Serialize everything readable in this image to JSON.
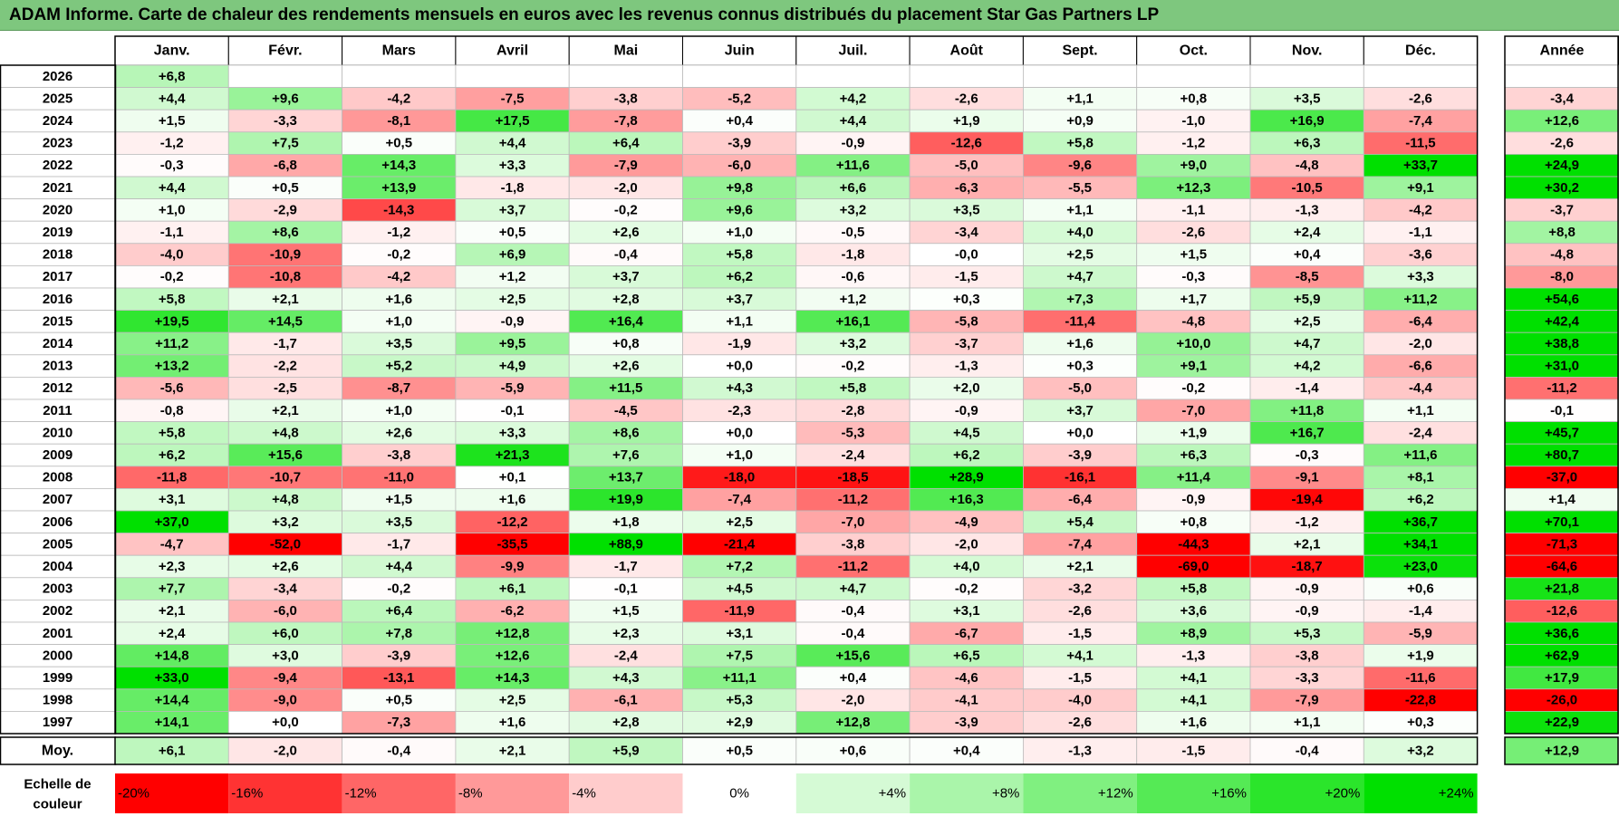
{
  "title": "ADAM Informe. Carte de chaleur des rendements mensuels en euros avec les revenus connus distribués du placement Star Gas Partners LP",
  "chart_data": {
    "type": "heatmap",
    "title": "ADAM Informe. Carte de chaleur des rendements mensuels en euros avec les revenus connus distribués du placement Star Gas Partners LP",
    "months": [
      "Janv.",
      "Févr.",
      "Mars",
      "Avril",
      "Mai",
      "Juin",
      "Juil.",
      "Août",
      "Sept.",
      "Oct.",
      "Nov.",
      "Déc."
    ],
    "annual_label": "Année",
    "rows": [
      {
        "year": "2026",
        "values": [
          "+6,8",
          "",
          "",
          "",
          "",
          "",
          "",
          "",
          "",
          "",
          "",
          ""
        ],
        "annual": ""
      },
      {
        "year": "2025",
        "values": [
          "+4,4",
          "+9,6",
          "-4,2",
          "-7,5",
          "-3,8",
          "-5,2",
          "+4,2",
          "-2,6",
          "+1,1",
          "+0,8",
          "+3,5",
          "-2,6"
        ],
        "annual": "-3,4"
      },
      {
        "year": "2024",
        "values": [
          "+1,5",
          "-3,3",
          "-8,1",
          "+17,5",
          "-7,8",
          "+0,4",
          "+4,4",
          "+1,9",
          "+0,9",
          "-1,0",
          "+16,9",
          "-7,4"
        ],
        "annual": "+12,6"
      },
      {
        "year": "2023",
        "values": [
          "-1,2",
          "+7,5",
          "+0,5",
          "+4,4",
          "+6,4",
          "-3,9",
          "-0,9",
          "-12,6",
          "+5,8",
          "-1,2",
          "+6,3",
          "-11,5"
        ],
        "annual": "-2,6"
      },
      {
        "year": "2022",
        "values": [
          "-0,3",
          "-6,8",
          "+14,3",
          "+3,3",
          "-7,9",
          "-6,0",
          "+11,6",
          "-5,0",
          "-9,6",
          "+9,0",
          "-4,8",
          "+33,7"
        ],
        "annual": "+24,9"
      },
      {
        "year": "2021",
        "values": [
          "+4,4",
          "+0,5",
          "+13,9",
          "-1,8",
          "-2,0",
          "+9,8",
          "+6,6",
          "-6,3",
          "-5,5",
          "+12,3",
          "-10,5",
          "+9,1"
        ],
        "annual": "+30,2"
      },
      {
        "year": "2020",
        "values": [
          "+1,0",
          "-2,9",
          "-14,3",
          "+3,7",
          "-0,2",
          "+9,6",
          "+3,2",
          "+3,5",
          "+1,1",
          "-1,1",
          "-1,3",
          "-4,2"
        ],
        "annual": "-3,7"
      },
      {
        "year": "2019",
        "values": [
          "-1,1",
          "+8,6",
          "-1,2",
          "+0,5",
          "+2,6",
          "+1,0",
          "-0,5",
          "-3,4",
          "+4,0",
          "-2,6",
          "+2,4",
          "-1,1"
        ],
        "annual": "+8,8"
      },
      {
        "year": "2018",
        "values": [
          "-4,0",
          "-10,9",
          "-0,2",
          "+6,9",
          "-0,4",
          "+5,8",
          "-1,8",
          "-0,0",
          "+2,5",
          "+1,5",
          "+0,4",
          "-3,6"
        ],
        "annual": "-4,8"
      },
      {
        "year": "2017",
        "values": [
          "-0,2",
          "-10,8",
          "-4,2",
          "+1,2",
          "+3,7",
          "+6,2",
          "-0,6",
          "-1,5",
          "+4,7",
          "-0,3",
          "-8,5",
          "+3,3"
        ],
        "annual": "-8,0"
      },
      {
        "year": "2016",
        "values": [
          "+5,8",
          "+2,1",
          "+1,6",
          "+2,5",
          "+2,8",
          "+3,7",
          "+1,2",
          "+0,3",
          "+7,3",
          "+1,7",
          "+5,9",
          "+11,2"
        ],
        "annual": "+54,6"
      },
      {
        "year": "2015",
        "values": [
          "+19,5",
          "+14,5",
          "+1,0",
          "-0,9",
          "+16,4",
          "+1,1",
          "+16,1",
          "-5,8",
          "-11,4",
          "-4,8",
          "+2,5",
          "-6,4"
        ],
        "annual": "+42,4"
      },
      {
        "year": "2014",
        "values": [
          "+11,2",
          "-1,7",
          "+3,5",
          "+9,5",
          "+0,8",
          "-1,9",
          "+3,2",
          "-3,7",
          "+1,6",
          "+10,0",
          "+4,7",
          "-2,0"
        ],
        "annual": "+38,8"
      },
      {
        "year": "2013",
        "values": [
          "+13,2",
          "-2,2",
          "+5,2",
          "+4,9",
          "+2,6",
          "+0,0",
          "-0,2",
          "-1,3",
          "+0,3",
          "+9,1",
          "+4,2",
          "-6,6"
        ],
        "annual": "+31,0"
      },
      {
        "year": "2012",
        "values": [
          "-5,6",
          "-2,5",
          "-8,7",
          "-5,9",
          "+11,5",
          "+4,3",
          "+5,8",
          "+2,0",
          "-5,0",
          "-0,2",
          "-1,4",
          "-4,4"
        ],
        "annual": "-11,2"
      },
      {
        "year": "2011",
        "values": [
          "-0,8",
          "+2,1",
          "+1,0",
          "-0,1",
          "-4,5",
          "-2,3",
          "-2,8",
          "-0,9",
          "+3,7",
          "-7,0",
          "+11,8",
          "+1,1"
        ],
        "annual": "-0,1"
      },
      {
        "year": "2010",
        "values": [
          "+5,8",
          "+4,8",
          "+2,6",
          "+3,3",
          "+8,6",
          "+0,0",
          "-5,3",
          "+4,5",
          "+0,0",
          "+1,9",
          "+16,7",
          "-2,4"
        ],
        "annual": "+45,7"
      },
      {
        "year": "2009",
        "values": [
          "+6,2",
          "+15,6",
          "-3,8",
          "+21,3",
          "+7,6",
          "+1,0",
          "-2,4",
          "+6,2",
          "-3,9",
          "+6,3",
          "-0,3",
          "+11,6"
        ],
        "annual": "+80,7"
      },
      {
        "year": "2008",
        "values": [
          "-11,8",
          "-10,7",
          "-11,0",
          "+0,1",
          "+13,7",
          "-18,0",
          "-18,5",
          "+28,9",
          "-16,1",
          "+11,4",
          "-9,1",
          "+8,1"
        ],
        "annual": "-37,0"
      },
      {
        "year": "2007",
        "values": [
          "+3,1",
          "+4,8",
          "+1,5",
          "+1,6",
          "+19,9",
          "-7,4",
          "-11,2",
          "+16,3",
          "-6,4",
          "-0,9",
          "-19,4",
          "+6,2"
        ],
        "annual": "+1,4"
      },
      {
        "year": "2006",
        "values": [
          "+37,0",
          "+3,2",
          "+3,5",
          "-12,2",
          "+1,8",
          "+2,5",
          "-7,0",
          "-4,9",
          "+5,4",
          "+0,8",
          "-1,2",
          "+36,7"
        ],
        "annual": "+70,1"
      },
      {
        "year": "2005",
        "values": [
          "-4,7",
          "-52,0",
          "-1,7",
          "-35,5",
          "+88,9",
          "-21,4",
          "-3,8",
          "-2,0",
          "-7,4",
          "-44,3",
          "+2,1",
          "+34,1"
        ],
        "annual": "-71,3"
      },
      {
        "year": "2004",
        "values": [
          "+2,3",
          "+2,6",
          "+4,4",
          "-9,9",
          "-1,7",
          "+7,2",
          "-11,2",
          "+4,0",
          "+2,1",
          "-69,0",
          "-18,7",
          "+23,0"
        ],
        "annual": "-64,6"
      },
      {
        "year": "2003",
        "values": [
          "+7,7",
          "-3,4",
          "-0,2",
          "+6,1",
          "-0,1",
          "+4,5",
          "+4,7",
          "-0,2",
          "-3,2",
          "+5,8",
          "-0,9",
          "+0,6"
        ],
        "annual": "+21,8"
      },
      {
        "year": "2002",
        "values": [
          "+2,1",
          "-6,0",
          "+6,4",
          "-6,2",
          "+1,5",
          "-11,9",
          "-0,4",
          "+3,1",
          "-2,6",
          "+3,6",
          "-0,9",
          "-1,4"
        ],
        "annual": "-12,6"
      },
      {
        "year": "2001",
        "values": [
          "+2,4",
          "+6,0",
          "+7,8",
          "+12,8",
          "+2,3",
          "+3,1",
          "-0,4",
          "-6,7",
          "-1,5",
          "+8,9",
          "+5,3",
          "-5,9"
        ],
        "annual": "+36,6"
      },
      {
        "year": "2000",
        "values": [
          "+14,8",
          "+3,0",
          "-3,9",
          "+12,6",
          "-2,4",
          "+7,5",
          "+15,6",
          "+6,5",
          "+4,1",
          "-1,3",
          "-3,8",
          "+1,9"
        ],
        "annual": "+62,9"
      },
      {
        "year": "1999",
        "values": [
          "+33,0",
          "-9,4",
          "-13,1",
          "+14,3",
          "+4,3",
          "+11,1",
          "+0,4",
          "-4,6",
          "-1,5",
          "+4,1",
          "-3,3",
          "-11,6"
        ],
        "annual": "+17,9"
      },
      {
        "year": "1998",
        "values": [
          "+14,4",
          "-9,0",
          "+0,5",
          "+2,5",
          "-6,1",
          "+5,3",
          "-2,0",
          "-4,1",
          "-4,0",
          "+4,1",
          "-7,9",
          "-22,8"
        ],
        "annual": "-26,0"
      },
      {
        "year": "1997",
        "values": [
          "+14,1",
          "+0,0",
          "-7,3",
          "+1,6",
          "+2,8",
          "+2,9",
          "+12,8",
          "-3,9",
          "-2,6",
          "+1,6",
          "+1,1",
          "+0,3"
        ],
        "annual": "+22,9"
      }
    ],
    "average": {
      "label": "Moy.",
      "values": [
        "+6,1",
        "-2,0",
        "-0,4",
        "+2,1",
        "+5,9",
        "+0,5",
        "+0,6",
        "+0,4",
        "-1,3",
        "-1,5",
        "-0,4",
        "+3,2"
      ],
      "annual": "+12,9"
    },
    "color_scale": {
      "label_line1": "Echelle de",
      "label_line2": "couleur",
      "stops": [
        "-20%",
        "-16%",
        "-12%",
        "-8%",
        "-4%",
        "0%",
        "+4%",
        "+8%",
        "+12%",
        "+16%",
        "+20%",
        "+24%"
      ],
      "stop_values": [
        -20,
        -16,
        -12,
        -8,
        -4,
        0,
        4,
        8,
        12,
        16,
        20,
        24
      ]
    },
    "colors": {
      "negative_max": "#ff0000",
      "positive_max": "#00e000",
      "neutral": "#ffffff",
      "title_bg": "#7ec77e"
    }
  }
}
